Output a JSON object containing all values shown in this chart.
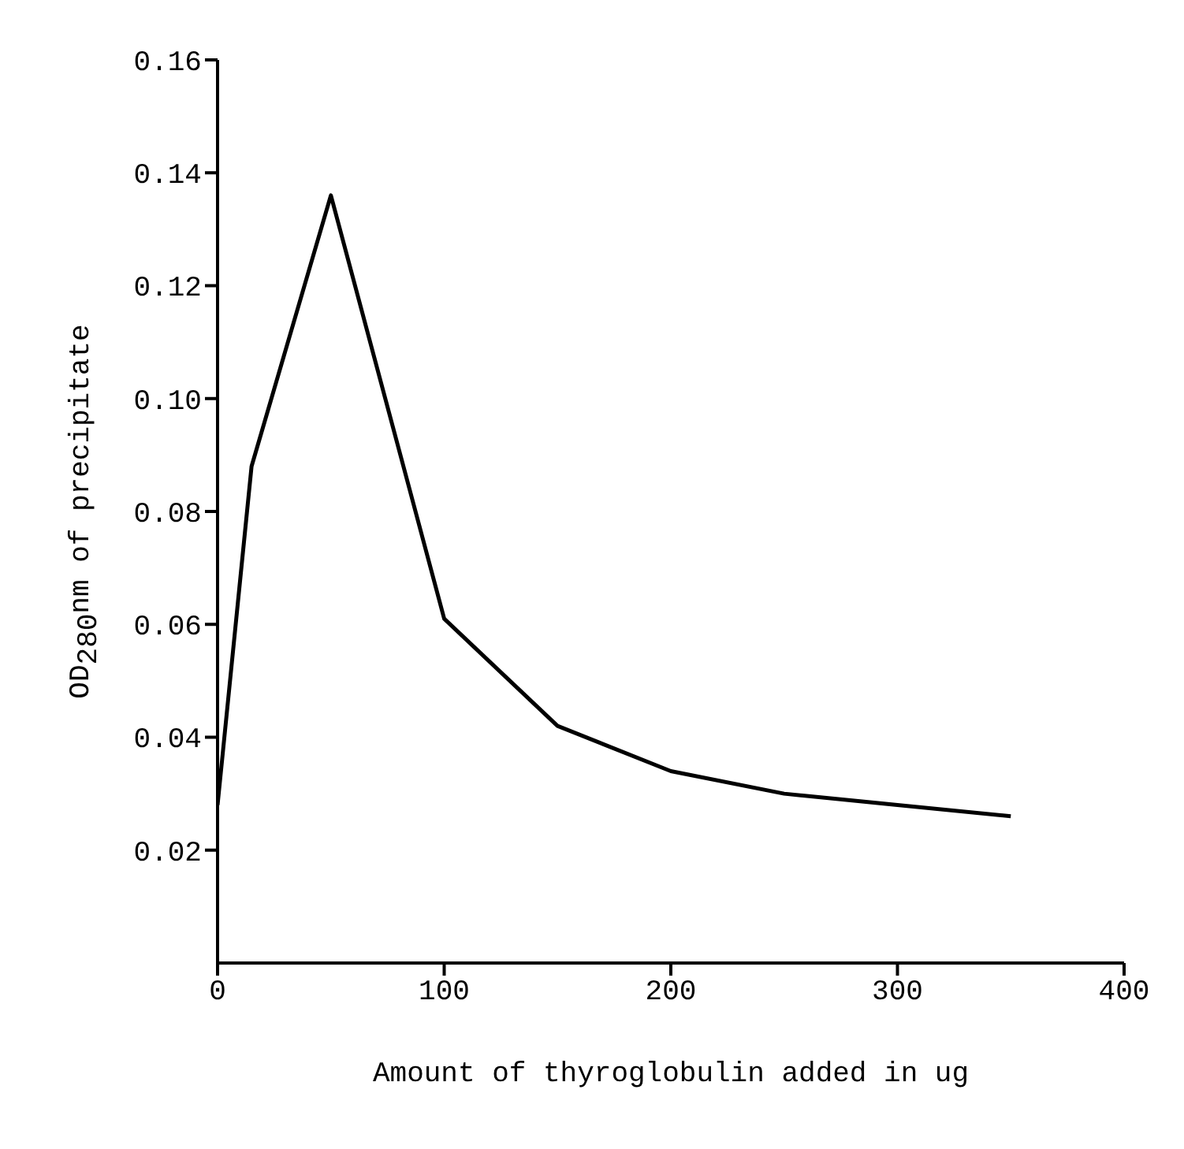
{
  "chart_data": {
    "type": "line",
    "xlabel": "Amount of thyroglobulin added in ug",
    "ylabel": "OD$_{280}$nm of precipitate",
    "x": [
      0,
      15,
      50,
      100,
      150,
      200,
      250,
      300,
      350
    ],
    "series": [
      {
        "color": "#000000",
        "values": [
          0.028,
          0.088,
          0.136,
          0.061,
          0.042,
          0.034,
          0.03,
          0.028,
          0.026
        ]
      }
    ],
    "xlim": [
      0,
      400
    ],
    "xticks": [
      0,
      100,
      200,
      300,
      400
    ],
    "ylim": [
      0,
      0.16
    ],
    "yticks": [
      0.02,
      0.04,
      0.06,
      0.08,
      {
        "value": 0.1,
        "label": "0.10"
      },
      0.12,
      0.14,
      0.16
    ],
    "grid": false,
    "legend": false,
    "marker": "none",
    "line_style": "solid"
  }
}
